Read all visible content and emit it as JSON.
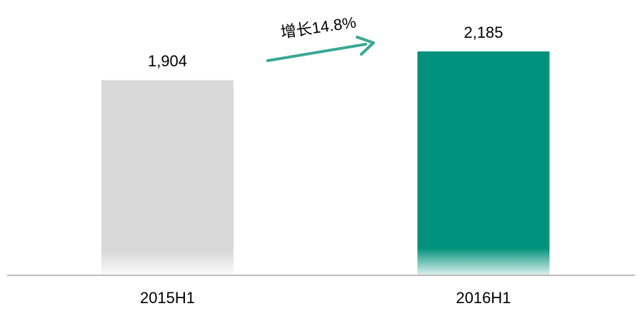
{
  "chart_data": {
    "type": "bar",
    "categories": [
      "2015H1",
      "2016H1"
    ],
    "values": [
      1904,
      2185
    ],
    "value_labels": [
      "1,904",
      "2,185"
    ],
    "colors": [
      "#d9d9d9",
      "#00917c"
    ],
    "annotation": "增长14.8%",
    "annotation_color": "#3aa796",
    "ylim": [
      0,
      2500
    ],
    "grid": false
  }
}
